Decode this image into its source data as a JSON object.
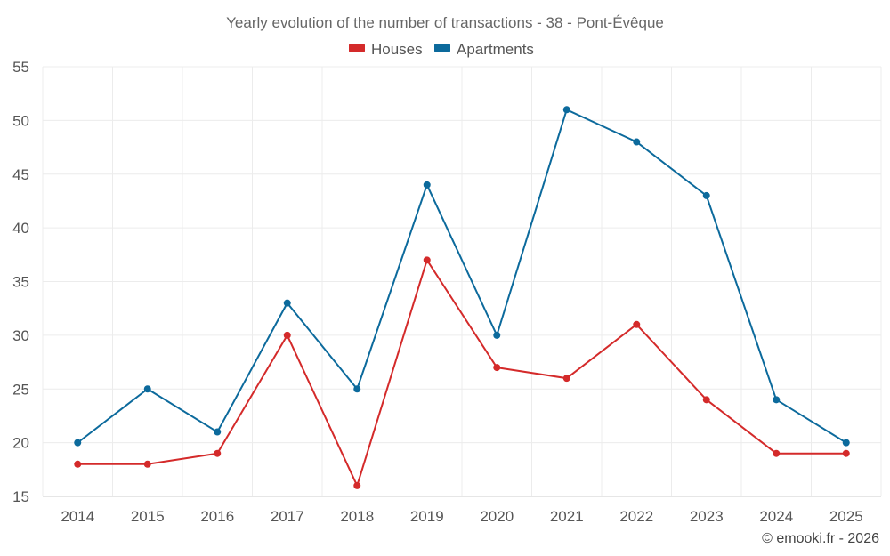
{
  "chart_data": {
    "type": "line",
    "title": "Yearly evolution of the number of transactions - 38 - Pont-Évêque",
    "categories": [
      "2014",
      "2015",
      "2016",
      "2017",
      "2018",
      "2019",
      "2020",
      "2021",
      "2022",
      "2023",
      "2024",
      "2025"
    ],
    "series": [
      {
        "name": "Houses",
        "color": "#d42a2a",
        "values": [
          18,
          18,
          19,
          30,
          16,
          37,
          27,
          26,
          31,
          24,
          19,
          19
        ]
      },
      {
        "name": "Apartments",
        "color": "#0c6a9c",
        "values": [
          20,
          25,
          21,
          33,
          25,
          44,
          30,
          51,
          48,
          43,
          24,
          20
        ]
      }
    ],
    "ylim": [
      15,
      55
    ],
    "yticks": [
      "15",
      "20",
      "25",
      "30",
      "35",
      "40",
      "45",
      "50",
      "55"
    ],
    "xlabel": "",
    "ylabel": "",
    "grid": true,
    "legend": "top-center"
  },
  "credit": "© emooki.fr - 2026"
}
